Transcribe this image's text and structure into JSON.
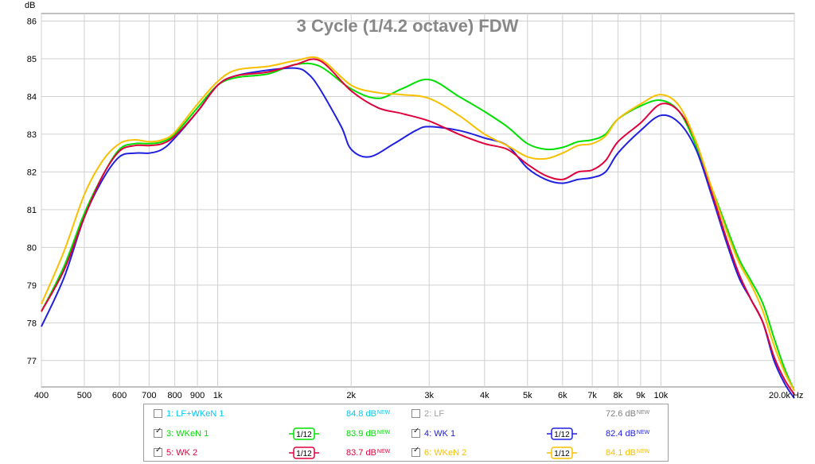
{
  "chart_data": {
    "type": "line",
    "title": "3 Cycle (1/4.2 octave) FDW",
    "ylabel": "dB",
    "xlabel": "Hz",
    "x_scale": "log",
    "xlim": [
      400,
      20000
    ],
    "ylim": [
      76.3,
      86.2
    ],
    "grid": true,
    "y_ticks": [
      "86",
      "85",
      "84",
      "83",
      "82",
      "81",
      "80",
      "79",
      "78",
      "77"
    ],
    "y_tick_values": [
      86,
      85,
      84,
      83,
      82,
      81,
      80,
      79,
      78,
      77
    ],
    "x_ticks": [
      "400",
      "500",
      "600",
      "700",
      "800",
      "900",
      "1k",
      "2k",
      "3k",
      "4k",
      "5k",
      "6k",
      "7k",
      "8k",
      "9k",
      "10k",
      "20.0k Hz"
    ],
    "x_tick_values": [
      400,
      500,
      600,
      700,
      800,
      900,
      1000,
      2000,
      3000,
      4000,
      5000,
      6000,
      7000,
      8000,
      9000,
      10000,
      20000
    ],
    "series": [
      {
        "name": "3: WKeN 1",
        "color": "#00e000",
        "points": [
          [
            400,
            78.3
          ],
          [
            450,
            79.5
          ],
          [
            500,
            80.9
          ],
          [
            550,
            81.9
          ],
          [
            600,
            82.6
          ],
          [
            650,
            82.75
          ],
          [
            700,
            82.75
          ],
          [
            750,
            82.8
          ],
          [
            800,
            83.0
          ],
          [
            900,
            83.7
          ],
          [
            1000,
            84.3
          ],
          [
            1100,
            84.5
          ],
          [
            1300,
            84.6
          ],
          [
            1500,
            84.85
          ],
          [
            1700,
            84.8
          ],
          [
            2000,
            84.2
          ],
          [
            2300,
            83.95
          ],
          [
            2600,
            84.2
          ],
          [
            3000,
            84.45
          ],
          [
            3500,
            84.0
          ],
          [
            4000,
            83.6
          ],
          [
            4500,
            83.2
          ],
          [
            5000,
            82.75
          ],
          [
            5500,
            82.6
          ],
          [
            6000,
            82.65
          ],
          [
            6500,
            82.8
          ],
          [
            7000,
            82.85
          ],
          [
            7500,
            83.0
          ],
          [
            8000,
            83.4
          ],
          [
            9000,
            83.75
          ],
          [
            10000,
            83.9
          ],
          [
            11000,
            83.6
          ],
          [
            12000,
            82.7
          ],
          [
            13000,
            81.6
          ],
          [
            14000,
            80.6
          ],
          [
            15000,
            79.7
          ],
          [
            16000,
            79.1
          ],
          [
            17000,
            78.5
          ],
          [
            18000,
            77.6
          ],
          [
            19000,
            76.8
          ],
          [
            20000,
            76.2
          ]
        ]
      },
      {
        "name": "4: WK 1",
        "color": "#2020e0",
        "points": [
          [
            400,
            77.9
          ],
          [
            450,
            79.2
          ],
          [
            500,
            80.8
          ],
          [
            550,
            81.8
          ],
          [
            600,
            82.4
          ],
          [
            650,
            82.5
          ],
          [
            700,
            82.5
          ],
          [
            750,
            82.6
          ],
          [
            800,
            82.9
          ],
          [
            900,
            83.6
          ],
          [
            1000,
            84.3
          ],
          [
            1100,
            84.55
          ],
          [
            1300,
            84.7
          ],
          [
            1500,
            84.75
          ],
          [
            1600,
            84.6
          ],
          [
            1700,
            84.2
          ],
          [
            1900,
            83.2
          ],
          [
            2000,
            82.6
          ],
          [
            2200,
            82.4
          ],
          [
            2500,
            82.75
          ],
          [
            2800,
            83.1
          ],
          [
            3000,
            83.2
          ],
          [
            3500,
            83.1
          ],
          [
            4000,
            82.9
          ],
          [
            4500,
            82.7
          ],
          [
            5000,
            82.1
          ],
          [
            5500,
            81.8
          ],
          [
            6000,
            81.7
          ],
          [
            6500,
            81.8
          ],
          [
            7000,
            81.85
          ],
          [
            7500,
            82.0
          ],
          [
            8000,
            82.5
          ],
          [
            9000,
            83.1
          ],
          [
            10000,
            83.5
          ],
          [
            11000,
            83.3
          ],
          [
            12000,
            82.6
          ],
          [
            13000,
            81.4
          ],
          [
            14000,
            80.2
          ],
          [
            15000,
            79.2
          ],
          [
            16000,
            78.6
          ],
          [
            17000,
            78.0
          ],
          [
            18000,
            77.0
          ],
          [
            19000,
            76.4
          ],
          [
            20000,
            76.0
          ]
        ]
      },
      {
        "name": "5: WK 2",
        "color": "#e0003c",
        "points": [
          [
            400,
            78.3
          ],
          [
            450,
            79.4
          ],
          [
            500,
            80.8
          ],
          [
            550,
            81.9
          ],
          [
            600,
            82.55
          ],
          [
            650,
            82.7
          ],
          [
            700,
            82.7
          ],
          [
            750,
            82.75
          ],
          [
            800,
            82.95
          ],
          [
            900,
            83.6
          ],
          [
            1000,
            84.3
          ],
          [
            1100,
            84.55
          ],
          [
            1300,
            84.65
          ],
          [
            1500,
            84.85
          ],
          [
            1700,
            84.95
          ],
          [
            2000,
            84.15
          ],
          [
            2300,
            83.7
          ],
          [
            2600,
            83.55
          ],
          [
            3000,
            83.35
          ],
          [
            3500,
            83.0
          ],
          [
            4000,
            82.75
          ],
          [
            4500,
            82.6
          ],
          [
            5000,
            82.2
          ],
          [
            5500,
            81.9
          ],
          [
            6000,
            81.8
          ],
          [
            6500,
            82.0
          ],
          [
            7000,
            82.05
          ],
          [
            7500,
            82.3
          ],
          [
            8000,
            82.8
          ],
          [
            9000,
            83.3
          ],
          [
            10000,
            83.8
          ],
          [
            11000,
            83.6
          ],
          [
            12000,
            82.8
          ],
          [
            13000,
            81.5
          ],
          [
            14000,
            80.3
          ],
          [
            15000,
            79.3
          ],
          [
            16000,
            78.6
          ],
          [
            17000,
            78.0
          ],
          [
            18000,
            77.1
          ],
          [
            19000,
            76.5
          ],
          [
            20000,
            76.1
          ]
        ]
      },
      {
        "name": "6: WKeN 2",
        "color": "#f8c000",
        "points": [
          [
            400,
            78.5
          ],
          [
            450,
            79.9
          ],
          [
            500,
            81.4
          ],
          [
            550,
            82.3
          ],
          [
            600,
            82.75
          ],
          [
            650,
            82.85
          ],
          [
            700,
            82.8
          ],
          [
            750,
            82.85
          ],
          [
            800,
            83.05
          ],
          [
            900,
            83.8
          ],
          [
            1000,
            84.4
          ],
          [
            1100,
            84.7
          ],
          [
            1300,
            84.8
          ],
          [
            1500,
            84.95
          ],
          [
            1700,
            85.0
          ],
          [
            2000,
            84.3
          ],
          [
            2300,
            84.1
          ],
          [
            2600,
            84.05
          ],
          [
            3000,
            83.95
          ],
          [
            3500,
            83.5
          ],
          [
            4000,
            83.0
          ],
          [
            4500,
            82.7
          ],
          [
            5000,
            82.4
          ],
          [
            5500,
            82.35
          ],
          [
            6000,
            82.5
          ],
          [
            6500,
            82.7
          ],
          [
            7000,
            82.75
          ],
          [
            7500,
            82.95
          ],
          [
            8000,
            83.4
          ],
          [
            9000,
            83.8
          ],
          [
            10000,
            84.05
          ],
          [
            11000,
            83.75
          ],
          [
            12000,
            82.8
          ],
          [
            13000,
            81.6
          ],
          [
            14000,
            80.5
          ],
          [
            15000,
            79.6
          ],
          [
            16000,
            79.0
          ],
          [
            17000,
            78.3
          ],
          [
            18000,
            77.4
          ],
          [
            19000,
            76.7
          ],
          [
            20000,
            76.2
          ]
        ]
      }
    ]
  },
  "legend": {
    "items": [
      {
        "name": "1: LF+WKeN 1",
        "value": "84.8 dB",
        "new": "NEW",
        "checked": false,
        "color": "#00c8f0",
        "value_color": "#00c8f0",
        "smoothing": ""
      },
      {
        "name": "2: LF",
        "value": "72.6 dB",
        "new": "NEW",
        "checked": false,
        "color": "#a0a0a0",
        "value_color": "#808080",
        "smoothing": ""
      },
      {
        "name": "3: WKeN 1",
        "value": "83.9 dB",
        "new": "NEW",
        "checked": true,
        "color": "#00e000",
        "value_color": "#00e000",
        "smoothing": "1/12"
      },
      {
        "name": "4: WK 1",
        "value": "82.4 dB",
        "new": "NEW",
        "checked": true,
        "color": "#2020e0",
        "value_color": "#2020e0",
        "smoothing": "1/12"
      },
      {
        "name": "5: WK 2",
        "value": "83.7 dB",
        "new": "NEW",
        "checked": true,
        "color": "#e0003c",
        "value_color": "#e0003c",
        "smoothing": "1/12"
      },
      {
        "name": "6: WKeN 2",
        "value": "84.1 dB",
        "new": "NEW",
        "checked": true,
        "color": "#f8c000",
        "value_color": "#f8c000",
        "smoothing": "1/12"
      }
    ]
  }
}
